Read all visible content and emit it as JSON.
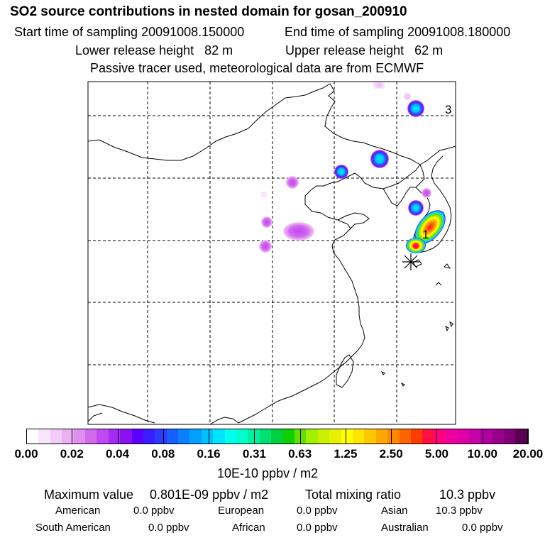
{
  "header": {
    "title": "SO2 source contributions in nested domain for gosan_200910",
    "start_label": "Start time of sampling 20091008.150000",
    "end_label": "End time of sampling 20091008.180000",
    "lower_label": "Lower release height   82 m",
    "upper_label": "Upper release height   62 m",
    "tracer_note": "Passive tracer used, meteorological data are from ECMWF"
  },
  "chart_data": {
    "type": "heatmap",
    "title": "SO2 source contributions in nested domain for gosan_200910",
    "map_labels": [
      {
        "text": "3",
        "name": "map-label-3"
      },
      {
        "text": "1",
        "name": "map-label-1"
      }
    ],
    "receptor": "gosan",
    "colorbar": {
      "unit": "10E-10 ppbv / m2",
      "ticks": [
        "0.00",
        "0.02",
        "0.04",
        "0.08",
        "0.16",
        "0.31",
        "0.63",
        "1.25",
        "2.50",
        "5.00",
        "10.00",
        "20.00"
      ],
      "colors": [
        "#ffffff",
        "#f9e6fb",
        "#f2ccf6",
        "#eab0f2",
        "#e08ef0",
        "#d36aee",
        "#c048f0",
        "#a52cf2",
        "#8a10f0",
        "#5a00ff",
        "#3a1cff",
        "#2a3cff",
        "#1560ff",
        "#0a80ff",
        "#00a0ff",
        "#00c0ff",
        "#00e4ff",
        "#00ffee",
        "#00ffcc",
        "#00f0a0",
        "#00e070",
        "#00d040",
        "#10d000",
        "#60e000",
        "#a0f000",
        "#c8f000",
        "#e8f000",
        "#ffff00",
        "#ffe400",
        "#ffc800",
        "#ffa800",
        "#ff8800",
        "#ff6400",
        "#ff3c00",
        "#ff1040",
        "#ff0080",
        "#f000a0",
        "#e000a8",
        "#c800a8",
        "#b000a0",
        "#98008c",
        "#800078",
        "#5a0050"
      ]
    },
    "summary": {
      "max_label": "Maximum value",
      "max_value": "0.801E-09 ppbv / m2",
      "total_label": "Total mixing ratio",
      "total_value": "10.3 ppbv"
    },
    "regions": [
      {
        "name": "American",
        "value": "0.0 ppbv"
      },
      {
        "name": "European",
        "value": "0.0 ppbv"
      },
      {
        "name": "Asian",
        "value": "10.3 ppbv"
      },
      {
        "name": "South American",
        "value": "0.0 ppbv"
      },
      {
        "name": "African",
        "value": "0.0 ppbv"
      },
      {
        "name": "Australian",
        "value": "0.0 ppbv"
      }
    ]
  }
}
